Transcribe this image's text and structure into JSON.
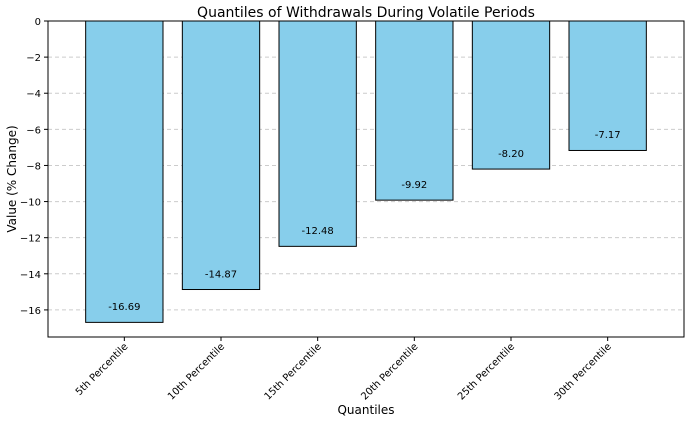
{
  "chart_data": {
    "type": "bar",
    "title": "Quantiles of Withdrawals During Volatile Periods",
    "xlabel": "Quantiles",
    "ylabel": "Value (% Change)",
    "categories": [
      "5th Percentile",
      "10th Percentile",
      "15th Percentile",
      "20th Percentile",
      "25th Percentile",
      "30th Percentile"
    ],
    "values": [
      -16.69,
      -14.87,
      -12.48,
      -9.92,
      -8.2,
      -7.17
    ],
    "value_labels": [
      "-16.69",
      "-14.87",
      "-12.48",
      "-9.92",
      "-8.20",
      "-7.17"
    ],
    "ylim": [
      -17.5,
      0
    ],
    "yticks": [
      0,
      -2,
      -4,
      -6,
      -8,
      -10,
      -12,
      -14,
      -16
    ],
    "ytick_labels": [
      "0",
      "−2",
      "−4",
      "−6",
      "−8",
      "−10",
      "−12",
      "−14",
      "−16"
    ],
    "grid": "y-dashed",
    "bar_color": "#87CEEB",
    "bar_edge_color": "#000000",
    "grid_color": "#cccccc"
  }
}
